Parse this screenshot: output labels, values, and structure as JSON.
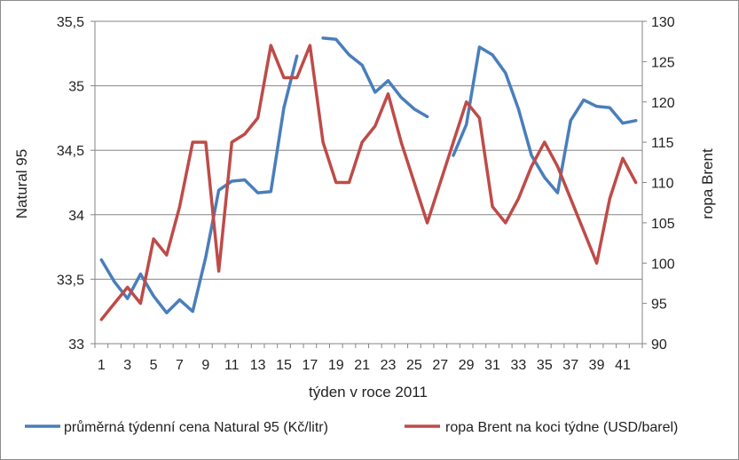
{
  "chart_data": {
    "type": "line",
    "xlabel": "týden v roce 2011",
    "ylabel_left": "Natural 95",
    "ylabel_right": "ropa Brent",
    "x_tick_labels": [
      "1",
      "3",
      "5",
      "7",
      "9",
      "11",
      "13",
      "15",
      "17",
      "19",
      "21",
      "23",
      "25",
      "27",
      "29",
      "31",
      "33",
      "35",
      "37",
      "39",
      "41"
    ],
    "y_left_ticks": [
      "33",
      "33,5",
      "34",
      "34,5",
      "35",
      "35,5"
    ],
    "y_right_ticks": [
      "90",
      "95",
      "100",
      "105",
      "110",
      "115",
      "120",
      "125",
      "130"
    ],
    "ylim_left": [
      33,
      35.5
    ],
    "ylim_right": [
      90,
      130
    ],
    "xlim": [
      1,
      42
    ],
    "grid": "horizontal",
    "legend_position": "bottom",
    "colors": {
      "natural95": "#4a7ebb",
      "brent": "#be4b48",
      "grid": "#868686"
    },
    "series": [
      {
        "name": "průměrná týdenní cena Natural 95 (Kč/litr)",
        "axis": "left",
        "x": [
          1,
          2,
          3,
          4,
          5,
          6,
          7,
          8,
          9,
          10,
          11,
          12,
          13,
          14,
          15,
          16,
          17,
          18,
          19,
          20,
          21,
          22,
          23,
          24,
          25,
          26,
          27,
          28,
          29,
          30,
          31,
          32,
          33,
          34,
          35,
          36,
          37,
          38,
          39,
          40,
          41,
          42
        ],
        "values": [
          33.65,
          33.48,
          33.35,
          33.54,
          33.37,
          33.24,
          33.34,
          33.25,
          33.67,
          34.19,
          34.26,
          34.27,
          34.17,
          34.18,
          34.83,
          35.23,
          null,
          35.37,
          35.36,
          35.24,
          35.16,
          34.95,
          35.04,
          34.91,
          34.82,
          34.76,
          null,
          34.46,
          34.7,
          35.3,
          35.24,
          35.1,
          34.82,
          34.46,
          34.29,
          34.17,
          34.73,
          34.89,
          34.84,
          34.83,
          34.71,
          34.73
        ]
      },
      {
        "name": "ropa Brent na koci týdne (USD/barel)",
        "axis": "right",
        "x": [
          1,
          2,
          3,
          4,
          5,
          6,
          7,
          8,
          9,
          10,
          11,
          12,
          13,
          14,
          15,
          16,
          17,
          18,
          19,
          20,
          21,
          22,
          23,
          24,
          25,
          26,
          27,
          28,
          29,
          30,
          31,
          32,
          33,
          34,
          35,
          36,
          37,
          38,
          39,
          40,
          41,
          42
        ],
        "values": [
          93,
          95,
          97,
          95,
          103,
          101,
          107,
          115,
          115,
          99,
          115,
          116,
          118,
          127,
          123,
          123,
          127,
          115,
          110,
          110,
          115,
          117,
          121,
          115,
          110,
          105,
          110,
          115,
          120,
          118,
          107,
          105,
          108,
          112,
          115,
          112,
          108,
          104,
          100,
          108,
          113,
          110
        ]
      }
    ]
  }
}
